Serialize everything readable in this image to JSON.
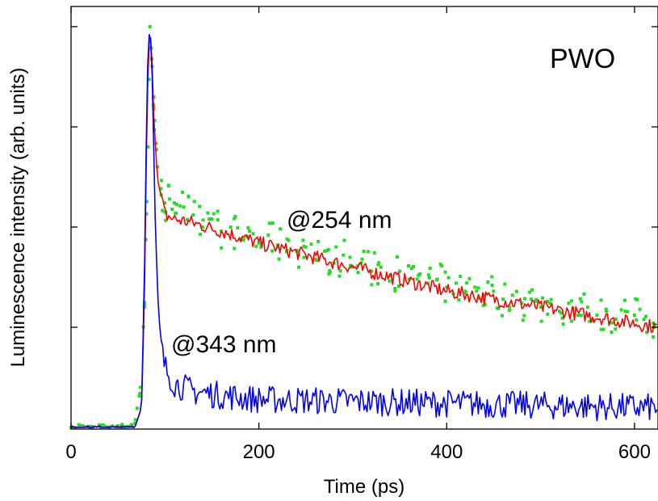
{
  "chart_data": {
    "type": "line",
    "title": "",
    "xlabel": "Time (ps)",
    "ylabel": "Luminescence intensity (arb. units)",
    "xlim": [
      0,
      625
    ],
    "ylim": [
      0,
      1.0
    ],
    "x_ticks": [
      0,
      200,
      400,
      600
    ],
    "x_tick_labels": [
      "0",
      "200",
      "400",
      "600"
    ],
    "y_ticks": [
      0.25,
      0.5,
      0.75,
      1.0
    ],
    "y_tick_labels": [],
    "grid": false,
    "legend": "none",
    "annotations": [
      {
        "text": "PWO",
        "x": 535,
        "y": 0.925
      },
      {
        "text": "@254 nm",
        "x": 230,
        "y": 0.505
      },
      {
        "text": "@343 nm",
        "x": 108,
        "y": 0.195
      }
    ],
    "series": [
      {
        "color": "#ff0000",
        "style": "line",
        "x": [
          0,
          40,
          68,
          75,
          78,
          80,
          82,
          84,
          86,
          88,
          92,
          100,
          110,
          130,
          160,
          200,
          250,
          300,
          350,
          400,
          450,
          500,
          550,
          600,
          625
        ],
        "y": [
          0.0,
          0.0,
          0.0,
          0.05,
          0.3,
          0.65,
          0.9,
          1.0,
          0.93,
          0.78,
          0.62,
          0.53,
          0.52,
          0.51,
          0.49,
          0.46,
          0.43,
          0.4,
          0.37,
          0.34,
          0.32,
          0.3,
          0.28,
          0.26,
          0.25
        ]
      },
      {
        "color": "#0000ff",
        "style": "line",
        "x": [
          0,
          40,
          68,
          75,
          78,
          80,
          82,
          84,
          86,
          88,
          90,
          93,
          96,
          100,
          110,
          130,
          160,
          200,
          300,
          400,
          500,
          600,
          625
        ],
        "y": [
          0.0,
          0.0,
          0.0,
          0.05,
          0.35,
          0.7,
          0.95,
          1.0,
          0.92,
          0.7,
          0.48,
          0.3,
          0.2,
          0.15,
          0.11,
          0.09,
          0.08,
          0.07,
          0.065,
          0.06,
          0.055,
          0.05,
          0.05
        ]
      },
      {
        "color": "#22dd22",
        "style": "points",
        "x": [
          0,
          10,
          20,
          30,
          40,
          50,
          60,
          68,
          74,
          78,
          82,
          84,
          86,
          88,
          92,
          96,
          100,
          105,
          110,
          120,
          130,
          140,
          150,
          160,
          170,
          180,
          190,
          200,
          210,
          220,
          230,
          240,
          250,
          260,
          270,
          280,
          290,
          300,
          310,
          320,
          330,
          340,
          350,
          360,
          370,
          380,
          390,
          400,
          410,
          420,
          430,
          440,
          450,
          460,
          470,
          480,
          490,
          500,
          510,
          520,
          530,
          540,
          550,
          560,
          570,
          580,
          590,
          600,
          610,
          620
        ],
        "y": [
          0.0,
          0.005,
          0.0,
          0.006,
          0.0,
          0.004,
          0.002,
          0.01,
          0.1,
          0.3,
          0.7,
          1.0,
          0.92,
          0.8,
          0.65,
          0.58,
          0.56,
          0.57,
          0.56,
          0.55,
          0.53,
          0.5,
          0.52,
          0.49,
          0.5,
          0.47,
          0.49,
          0.46,
          0.48,
          0.45,
          0.47,
          0.44,
          0.45,
          0.42,
          0.44,
          0.41,
          0.43,
          0.4,
          0.42,
          0.39,
          0.4,
          0.38,
          0.39,
          0.37,
          0.38,
          0.36,
          0.37,
          0.35,
          0.36,
          0.34,
          0.35,
          0.33,
          0.34,
          0.32,
          0.33,
          0.31,
          0.32,
          0.3,
          0.31,
          0.29,
          0.31,
          0.28,
          0.3,
          0.28,
          0.29,
          0.27,
          0.29,
          0.28,
          0.27,
          0.26
        ]
      }
    ]
  }
}
